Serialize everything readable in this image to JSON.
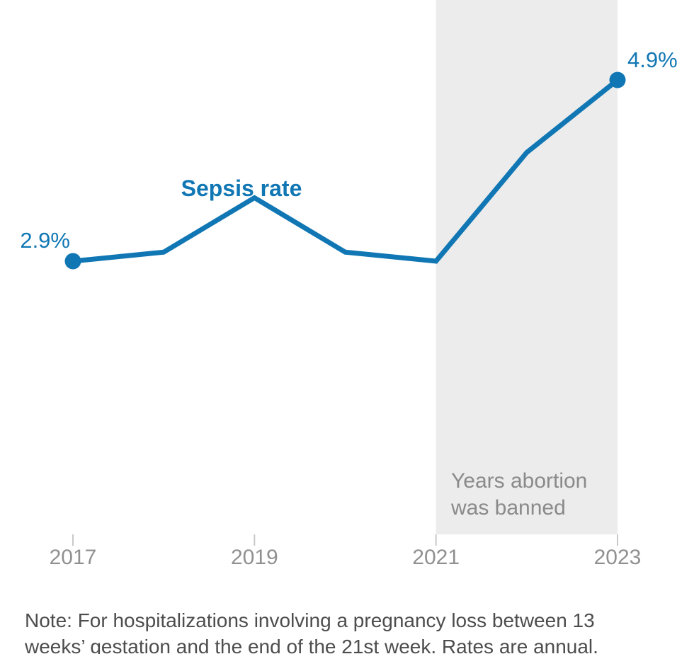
{
  "chart_data": {
    "type": "line",
    "x": [
      2017,
      2018,
      2019,
      2020,
      2021,
      2022,
      2023
    ],
    "series": [
      {
        "name": "Sepsis rate",
        "values": [
          2.9,
          3.0,
          3.6,
          3.0,
          2.9,
          4.1,
          4.9
        ]
      }
    ],
    "title": "",
    "xlabel": "",
    "ylabel": "",
    "ylim": [
      2.9,
      4.9
    ],
    "grid": false,
    "legend_position": "inline-label-above-line",
    "x_tick_labels": [
      "2017",
      "2019",
      "2021",
      "2023"
    ],
    "x_tick_years": [
      2017,
      2019,
      2021,
      2023
    ],
    "series_label": "Sepsis rate",
    "value_labels": {
      "first": "2.9%",
      "last": "4.9%"
    },
    "shaded_region": {
      "x_start": 2021,
      "x_end": 2023,
      "label_lines": [
        "Years abortion",
        "was banned"
      ]
    }
  },
  "note": {
    "lines": [
      "Note: For hospitalizations involving a pregnancy loss between 13",
      "weeks’ gestation and the end of the 21st week. Rates are annual."
    ]
  },
  "colors": {
    "line": "#1077b4",
    "dot": "#1077b4",
    "value_label": "#1077b4",
    "series_label": "#1077b4",
    "band_fill": "#ececec",
    "band_label": "#8a8a8a",
    "tick": "#c9c9c9",
    "tick_label": "#909090",
    "note_text": "#4d4d4d",
    "background": "#ffffff"
  }
}
